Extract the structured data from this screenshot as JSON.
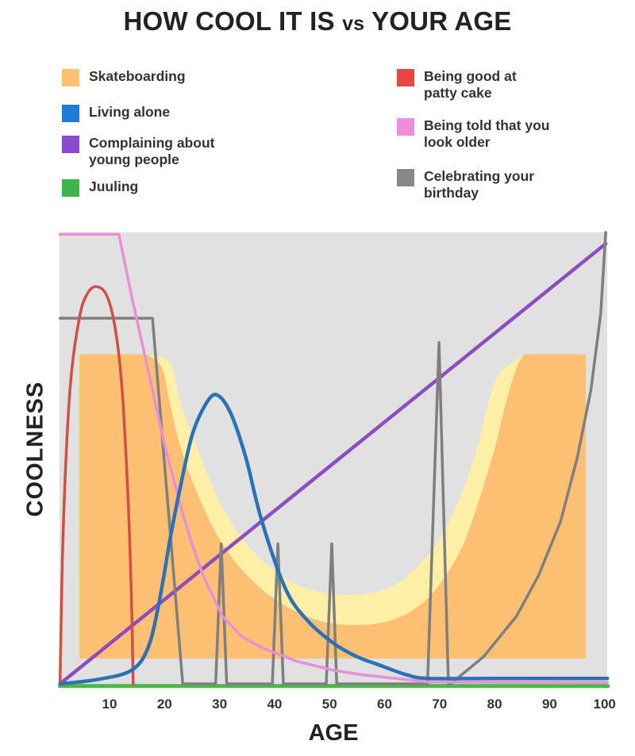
{
  "chart_data": {
    "type": "line",
    "title_main": "HOW COOL IT IS",
    "title_vs": "vs",
    "title_end": "YOUR AGE",
    "xlabel": "AGE",
    "ylabel": "COOLNESS",
    "xlim": [
      0.9,
      100.6
    ],
    "ylim": [
      0,
      100
    ],
    "xticks": [
      10,
      20,
      30,
      40,
      50,
      60,
      70,
      80,
      90,
      100
    ],
    "grid": false,
    "background": "#e1e1e1",
    "legend_position": "top",
    "series": [
      {
        "name": "Skateboarding",
        "color": "#fdbf72",
        "band_color": "#fdf0a6",
        "kind": "halfpipe",
        "base": 5.6,
        "values": [
          [
            4.5,
            73
          ],
          [
            16.8,
            73
          ],
          [
            19.5,
            70
          ],
          [
            21,
            62
          ],
          [
            23,
            52
          ],
          [
            26,
            42
          ],
          [
            30,
            32
          ],
          [
            35,
            24
          ],
          [
            41,
            18
          ],
          [
            48,
            14
          ],
          [
            55,
            13
          ],
          [
            61,
            14
          ],
          [
            66,
            17
          ],
          [
            70,
            22
          ],
          [
            74,
            30
          ],
          [
            77,
            40
          ],
          [
            80,
            52
          ],
          [
            82,
            62
          ],
          [
            84,
            70
          ],
          [
            85.4,
            73
          ],
          [
            96.6,
            73
          ]
        ],
        "band": [
          [
            16.8,
            73
          ],
          [
            21,
            71
          ],
          [
            23,
            62
          ],
          [
            26,
            52
          ],
          [
            29,
            43
          ],
          [
            33,
            34
          ],
          [
            38,
            27
          ],
          [
            44,
            22
          ],
          [
            50,
            20
          ],
          [
            57,
            20
          ],
          [
            62,
            22
          ],
          [
            66,
            26
          ],
          [
            70,
            32
          ],
          [
            74,
            42
          ],
          [
            77,
            53
          ],
          [
            79,
            63
          ],
          [
            80.5,
            68
          ],
          [
            82,
            70
          ],
          [
            85.4,
            73
          ]
        ]
      },
      {
        "name": "Living alone",
        "color": "#2a72b8",
        "legend_color": "#1f7bd8",
        "smooth": true,
        "values": [
          [
            1,
            0
          ],
          [
            8,
            1
          ],
          [
            14,
            3
          ],
          [
            17,
            8
          ],
          [
            19,
            18
          ],
          [
            21,
            32
          ],
          [
            22.6,
            42
          ],
          [
            25,
            55
          ],
          [
            27.5,
            62
          ],
          [
            29.5,
            64
          ],
          [
            32,
            60
          ],
          [
            34.8,
            50
          ],
          [
            37.7,
            36
          ],
          [
            42,
            21
          ],
          [
            46,
            14
          ],
          [
            50.7,
            9
          ],
          [
            55,
            6
          ],
          [
            59.4,
            4
          ],
          [
            64,
            2
          ],
          [
            68,
            1.2
          ],
          [
            80,
            1.2
          ],
          [
            100.5,
            1.2
          ]
        ]
      },
      {
        "name": "Complaining about young people",
        "color": "#8d4cc0",
        "legend_color": "#8c49cf",
        "smooth": false,
        "values": [
          [
            1,
            0
          ],
          [
            100.2,
            97.5
          ]
        ]
      },
      {
        "name": "Juuling",
        "color": "#4cb848",
        "legend_color": "#3cb54a",
        "smooth": false,
        "values": [
          [
            1,
            -0.5
          ],
          [
            100.6,
            -0.5
          ]
        ]
      },
      {
        "name": "Being good at patty cake",
        "color": "#d24f45",
        "legend_color": "#e84646",
        "smooth": true,
        "values": [
          [
            1,
            0
          ],
          [
            1.6,
            35
          ],
          [
            2.8,
            65
          ],
          [
            4.5,
            81
          ],
          [
            6,
            86.5
          ],
          [
            7.7,
            88
          ],
          [
            9.5,
            86
          ],
          [
            11,
            79
          ],
          [
            12.3,
            65
          ],
          [
            13.4,
            40
          ],
          [
            14,
            18
          ],
          [
            14.3,
            0
          ]
        ]
      },
      {
        "name": "Being told that you look older",
        "color": "#e88fd9",
        "legend_color": "#ee8de0",
        "smooth": false,
        "values": [
          [
            1,
            99.6
          ],
          [
            11.7,
            99.6
          ],
          [
            14,
            86
          ],
          [
            16,
            75
          ],
          [
            18,
            64
          ],
          [
            20,
            53
          ],
          [
            21.5,
            46
          ],
          [
            23,
            39
          ],
          [
            24.7,
            32
          ],
          [
            27,
            24
          ],
          [
            30.5,
            15
          ],
          [
            34,
            10.5
          ],
          [
            37.7,
            8
          ],
          [
            44,
            5
          ],
          [
            50.7,
            3
          ],
          [
            56,
            2
          ],
          [
            62,
            1.2
          ],
          [
            68,
            0.4
          ],
          [
            100.5,
            0.3
          ]
        ]
      },
      {
        "name": "Celebrating your birthday",
        "color": "#7f7f7f",
        "legend_color": "#888888",
        "smooth": false,
        "values": [
          [
            1,
            81
          ],
          [
            17.8,
            81
          ],
          [
            23.3,
            0
          ],
          [
            29.3,
            0
          ],
          [
            30.3,
            31
          ],
          [
            31.3,
            0
          ],
          [
            39.6,
            0
          ],
          [
            40.6,
            31
          ],
          [
            41.6,
            0
          ],
          [
            49.4,
            0
          ],
          [
            50.4,
            31
          ],
          [
            51.3,
            0
          ],
          [
            67.8,
            0
          ],
          [
            69.9,
            75.6
          ],
          [
            71.6,
            0
          ],
          [
            72,
            0
          ],
          [
            78,
            6
          ],
          [
            84,
            15
          ],
          [
            88,
            24
          ],
          [
            92,
            36
          ],
          [
            95,
            50
          ],
          [
            97.5,
            65
          ],
          [
            99.3,
            82
          ],
          [
            100.2,
            100
          ]
        ]
      }
    ]
  },
  "legend": {
    "left": [
      {
        "label": "Skateboarding",
        "color": "#fdbf72"
      },
      {
        "label": "Living alone",
        "color": "#1f7bd8"
      },
      {
        "label": "Complaining about young people",
        "color": "#8c49cf"
      },
      {
        "label": "Juuling",
        "color": "#3cb54a"
      }
    ],
    "right": [
      {
        "label": "Being good at patty cake",
        "color": "#e84646"
      },
      {
        "label": "Being told that you look older",
        "color": "#ee8de0"
      },
      {
        "label": "Celebrating your birthday",
        "color": "#888888"
      }
    ]
  }
}
